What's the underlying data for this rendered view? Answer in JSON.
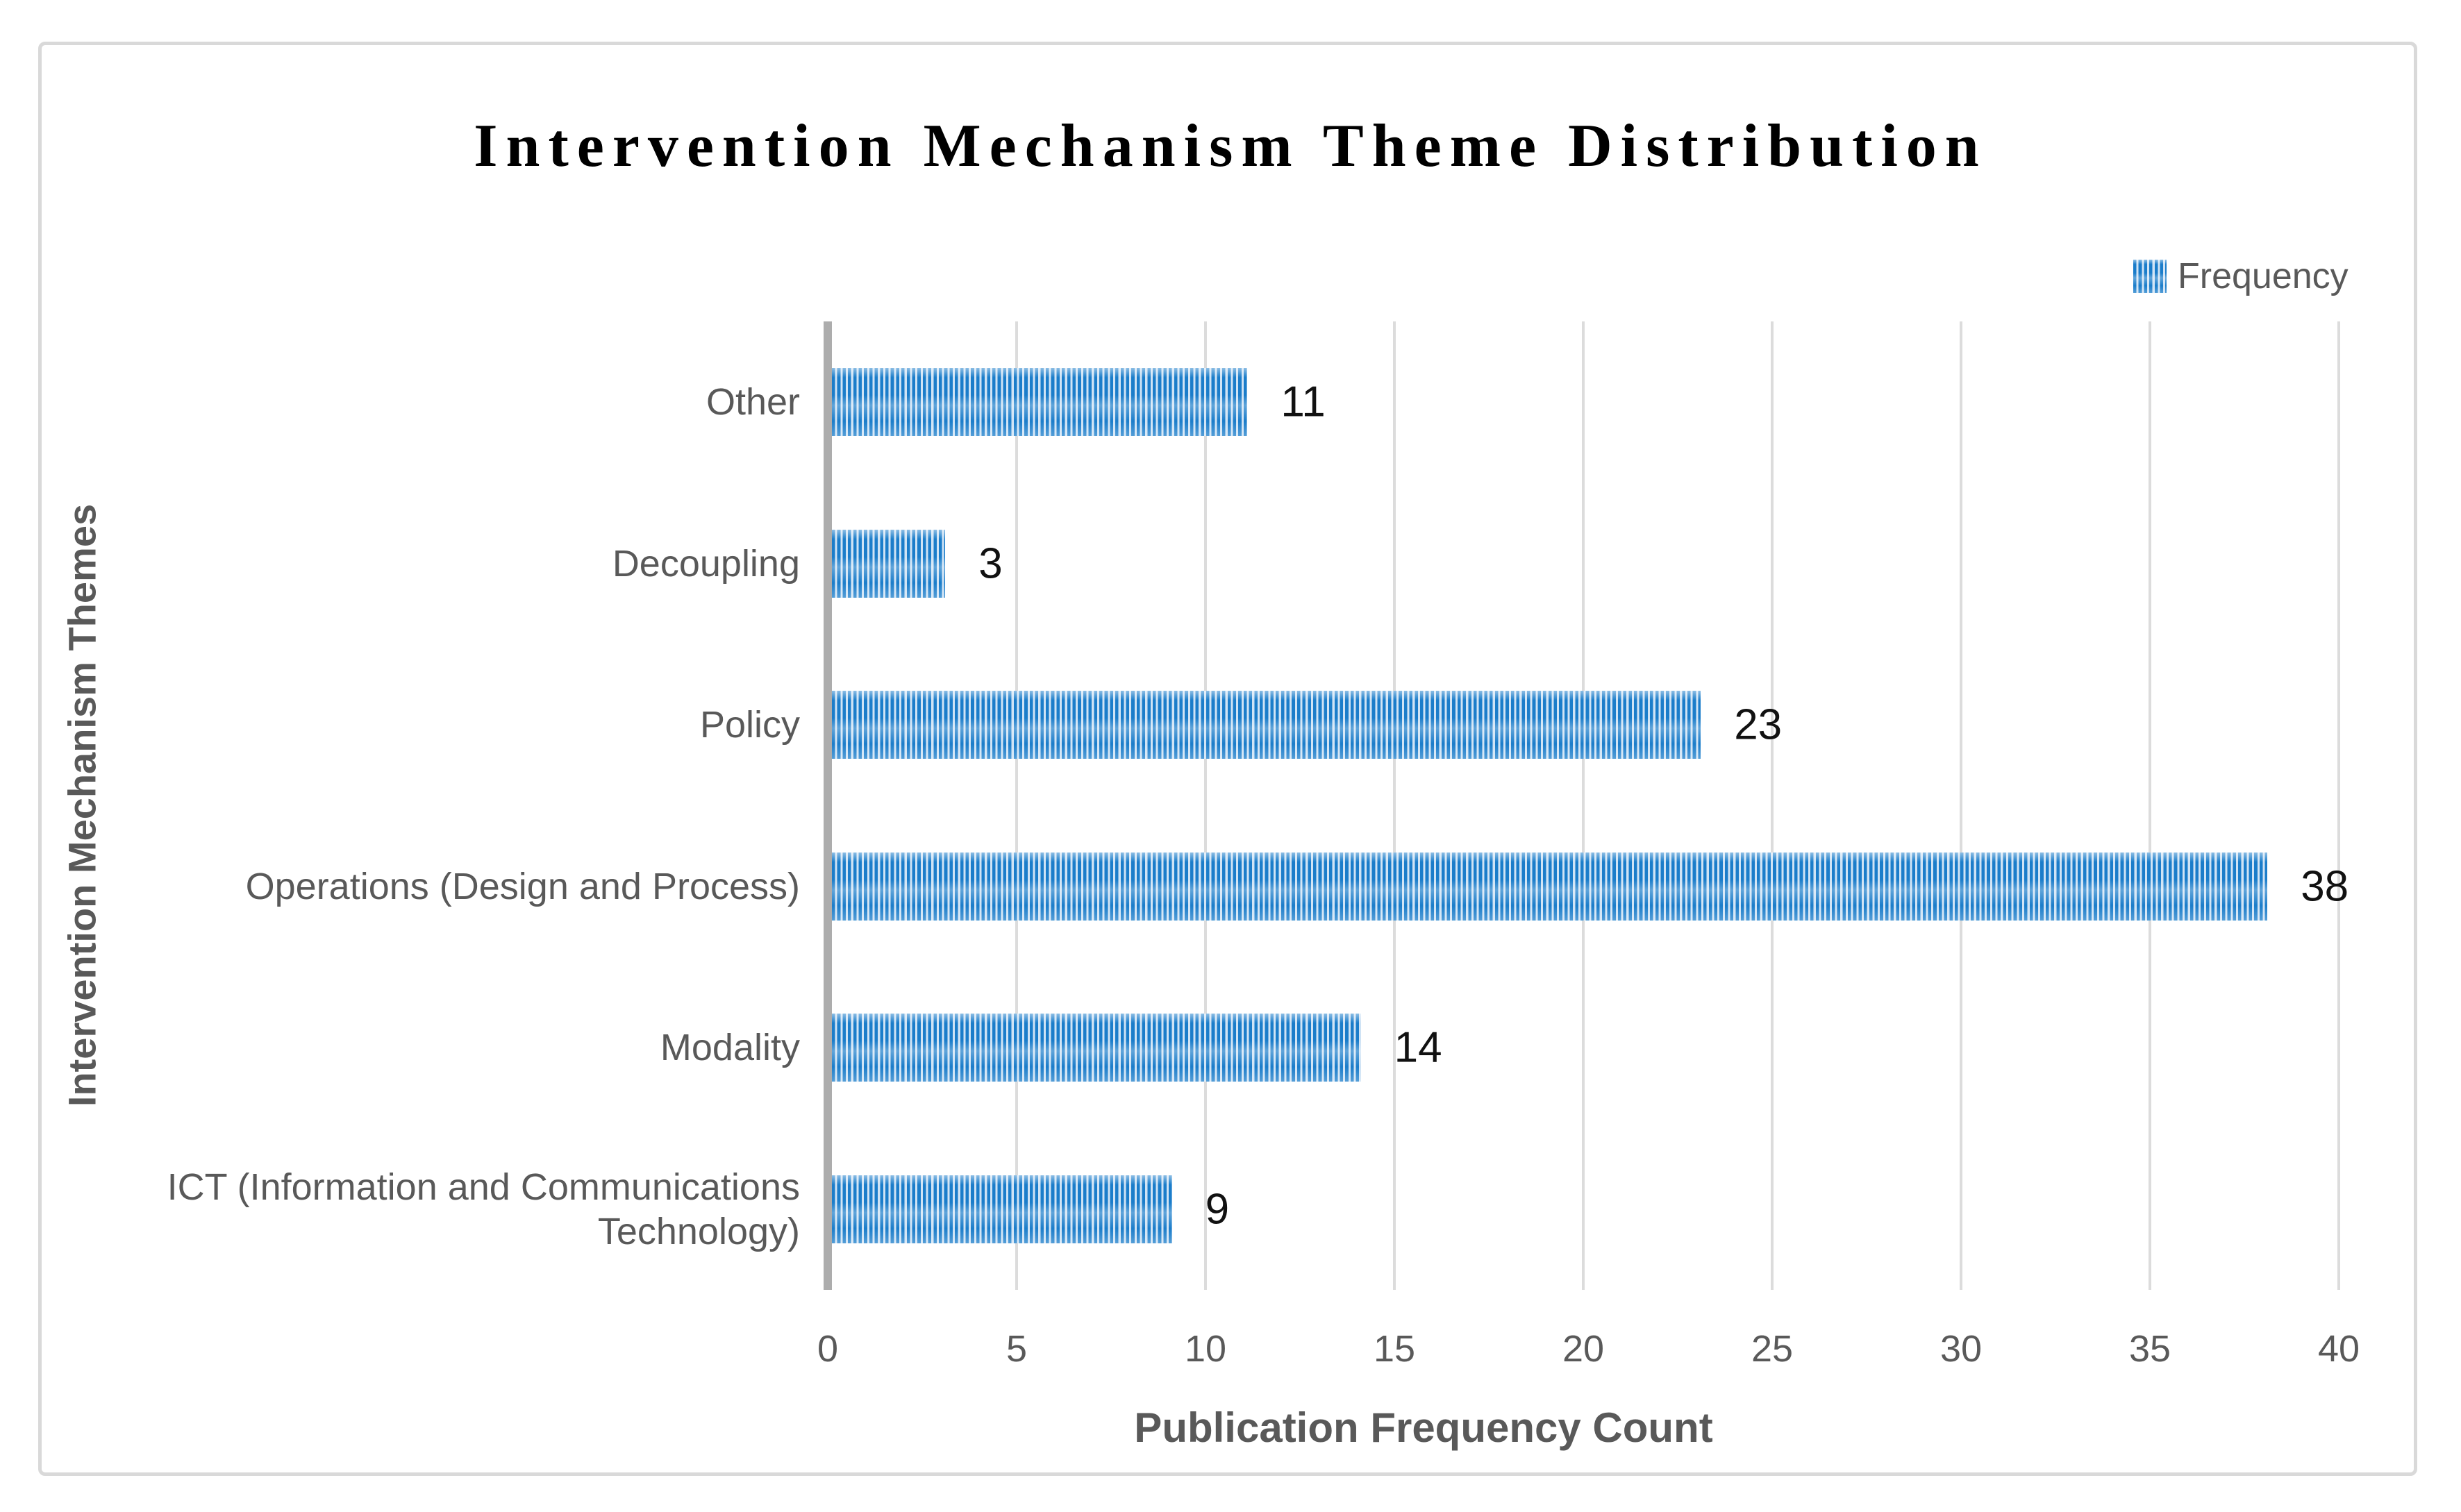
{
  "colors": {
    "bar_stripe_blue": "#1b7dca",
    "bar_gap_light": "#cfe3f5",
    "axis_line_gray": "#adadad",
    "gridline_gray": "#dcdcdc",
    "text_gray": "#595959",
    "title_black": "#000000",
    "frame_border": "#d9d9d9"
  },
  "chart_data": {
    "type": "bar",
    "orientation": "horizontal",
    "title": "Intervention Mechanism Theme Distribution",
    "xlabel": "Publication Frequency Count",
    "ylabel": "Intervention Mechanism Themes",
    "legend": {
      "position": "top-right",
      "entries": [
        {
          "label": "Frequency",
          "swatch": "blue-vertical-stripe-pattern"
        }
      ]
    },
    "categories": [
      "Other",
      "Decoupling",
      "Policy",
      "Operations (Design and Process)",
      "Modality",
      "ICT (Information and Communications Technology)"
    ],
    "series": [
      {
        "name": "Frequency",
        "values": [
          11,
          3,
          23,
          38,
          14,
          9
        ]
      }
    ],
    "data_labels": [
      11,
      3,
      23,
      38,
      14,
      9
    ],
    "xlim": [
      0,
      40
    ],
    "xticks": [
      0,
      5,
      10,
      15,
      20,
      25,
      30,
      35,
      40
    ],
    "grid": "vertical-gridlines-on"
  }
}
